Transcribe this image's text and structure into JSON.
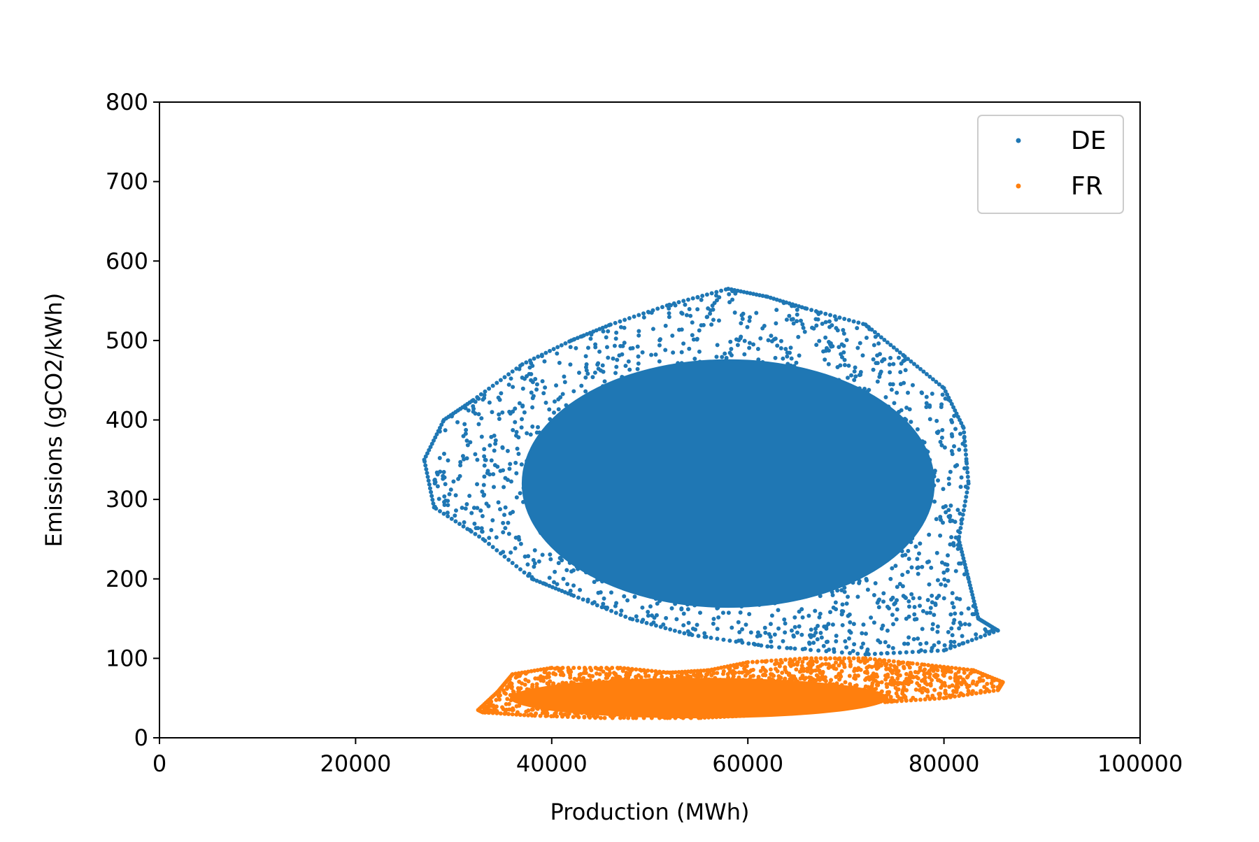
{
  "chart_data": {
    "type": "scatter",
    "title": "",
    "xlabel": "Production (MWh)",
    "ylabel": "Emissions (gCO2/kWh)",
    "xlim": [
      0,
      100000
    ],
    "ylim": [
      0,
      800
    ],
    "xticks": [
      0,
      20000,
      40000,
      60000,
      80000,
      100000
    ],
    "yticks": [
      0,
      100,
      200,
      300,
      400,
      500,
      600,
      700,
      800
    ],
    "grid": false,
    "legend_position": "top-right",
    "series": [
      {
        "name": "DE",
        "color": "#1f77b4",
        "envelope": [
          [
            27000,
            350
          ],
          [
            29000,
            400
          ],
          [
            32000,
            425
          ],
          [
            37000,
            470
          ],
          [
            42000,
            500
          ],
          [
            46000,
            520
          ],
          [
            52000,
            545
          ],
          [
            58000,
            565
          ],
          [
            62000,
            555
          ],
          [
            66000,
            540
          ],
          [
            72000,
            520
          ],
          [
            76000,
            480
          ],
          [
            80000,
            440
          ],
          [
            82000,
            390
          ],
          [
            82500,
            320
          ],
          [
            81500,
            250
          ],
          [
            82500,
            200
          ],
          [
            83500,
            150
          ],
          [
            85500,
            135
          ],
          [
            80000,
            110
          ],
          [
            72000,
            105
          ],
          [
            62000,
            115
          ],
          [
            54000,
            130
          ],
          [
            48000,
            150
          ],
          [
            42000,
            180
          ],
          [
            38000,
            200
          ],
          [
            33000,
            250
          ],
          [
            28000,
            290
          ]
        ],
        "density_center": [
          58000,
          320
        ],
        "point_count": 2200
      },
      {
        "name": "FR",
        "color": "#ff7f0e",
        "envelope": [
          [
            32500,
            35
          ],
          [
            34500,
            58
          ],
          [
            36000,
            80
          ],
          [
            40000,
            88
          ],
          [
            47000,
            88
          ],
          [
            52000,
            82
          ],
          [
            56000,
            85
          ],
          [
            60000,
            95
          ],
          [
            66000,
            100
          ],
          [
            72000,
            100
          ],
          [
            78000,
            92
          ],
          [
            83000,
            85
          ],
          [
            86000,
            70
          ],
          [
            85500,
            60
          ],
          [
            80000,
            50
          ],
          [
            74000,
            45
          ],
          [
            66000,
            45
          ],
          [
            62000,
            40
          ],
          [
            60000,
            28
          ],
          [
            55000,
            25
          ],
          [
            45000,
            25
          ],
          [
            38000,
            28
          ],
          [
            33000,
            32
          ]
        ],
        "density_center": [
          55000,
          50
        ],
        "point_count": 1600
      }
    ]
  }
}
